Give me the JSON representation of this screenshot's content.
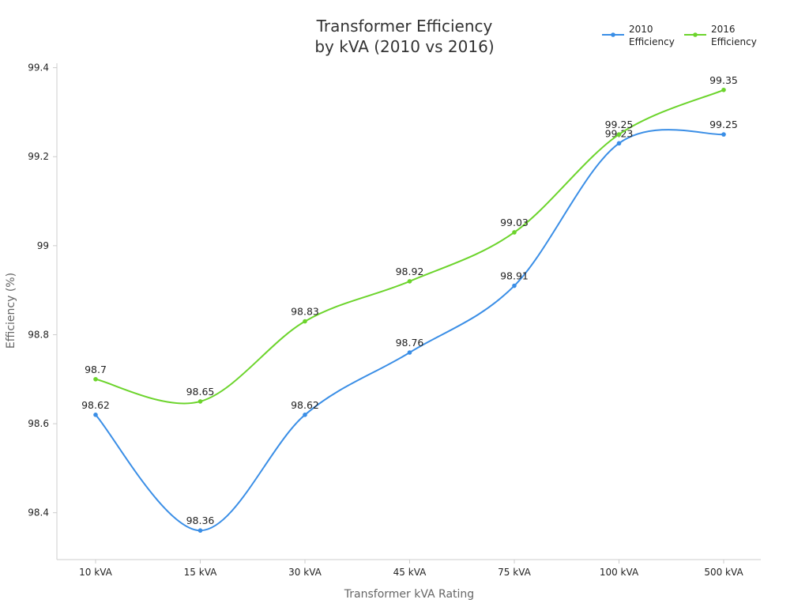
{
  "chart_data": {
    "type": "line",
    "title": [
      "Transformer Efficiency",
      "by kVA (2010 vs 2016)"
    ],
    "xlabel": "Transformer kVA Rating",
    "ylabel": "Efficiency (%)",
    "categories": [
      "10 kVA",
      "15 kVA",
      "30 kVA",
      "45 kVA",
      "75 kVA",
      "100 kVA",
      "500 kVA"
    ],
    "ylim": [
      98.3,
      99.41
    ],
    "yticks": [
      98.4,
      98.6,
      98.8,
      99,
      99.2,
      99.4
    ],
    "ytick_labels": [
      "98.4",
      "98.6",
      "98.8",
      "99",
      "99.2",
      "99.4"
    ],
    "grid": false,
    "legend_position": "top-right",
    "series": [
      {
        "name": [
          "2010",
          "Efficiency"
        ],
        "color": "#3a8ee6",
        "values": [
          98.62,
          98.36,
          98.62,
          98.76,
          98.91,
          99.23,
          99.25
        ],
        "labels": [
          "98.62",
          "98.36",
          "98.62",
          "98.76",
          "98.91",
          "99.23",
          "99.25"
        ]
      },
      {
        "name": [
          "2016",
          "Efficiency"
        ],
        "color": "#6cd42c",
        "values": [
          98.7,
          98.65,
          98.83,
          98.92,
          99.03,
          99.25,
          99.35
        ],
        "labels": [
          "98.7",
          "98.65",
          "98.83",
          "98.92",
          "99.03",
          "99.25",
          "99.35"
        ]
      }
    ]
  }
}
